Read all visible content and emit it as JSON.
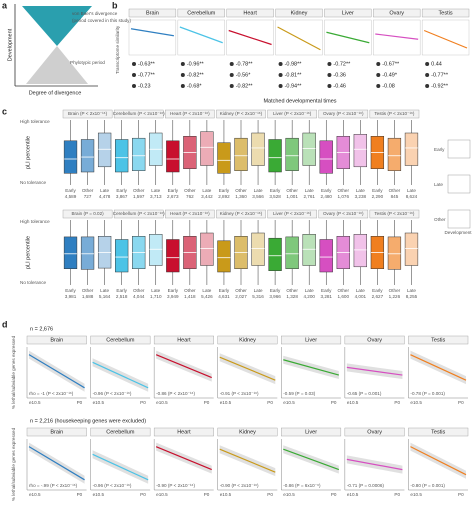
{
  "panels": {
    "a": {
      "label": "a",
      "y_axis": "Development",
      "x_axis": "Degree of divergence",
      "note_top": "von Baer's divergence",
      "note_sub": "(period covered in this study)",
      "note_bottom": "Phylotypic period"
    },
    "b": {
      "label": "b",
      "y_axis": "Transcriptome similarity",
      "x_axis": "Matched developmental times",
      "ylim": [
        0,
        1
      ],
      "tissues": [
        {
          "name": "Brain",
          "color": "#2f7fc1",
          "trend": [
            0.75,
            0.55
          ],
          "rho": [
            "-0.63**",
            "-0.77**",
            "-0.23"
          ]
        },
        {
          "name": "Cerebellum",
          "color": "#4cc3e6",
          "trend": [
            0.8,
            0.35
          ],
          "rho": [
            "-0.96**",
            "-0.82**",
            "-0.68*"
          ]
        },
        {
          "name": "Heart",
          "color": "#c8102e",
          "trend": [
            0.7,
            0.3
          ],
          "rho": [
            "-0.78**",
            "-0.56*",
            "-0.82**"
          ]
        },
        {
          "name": "Kidney",
          "color": "#c99a1a",
          "trend": [
            0.8,
            0.15
          ],
          "rho": [
            "-0.98**",
            "-0.81**",
            "-0.94**"
          ]
        },
        {
          "name": "Liver",
          "color": "#3aaa35",
          "trend": [
            0.65,
            0.35
          ],
          "rho": [
            "-0.72**",
            "-0.36",
            "-0.46"
          ]
        },
        {
          "name": "Ovary",
          "color": "#d64fc1",
          "trend": [
            0.6,
            0.45
          ],
          "rho": [
            "-0.67**",
            "-0.49*",
            "-0.08"
          ]
        },
        {
          "name": "Testis",
          "color": "#f07f1f",
          "trend": [
            0.7,
            0.2
          ],
          "rho": [
            "0.44",
            "-0.77**",
            "-0.92**"
          ]
        }
      ]
    },
    "c": {
      "label": "c",
      "y_axis": "pLI percentile",
      "high": "High tolerance",
      "low": "No tolerance",
      "ylim": [
        0,
        100
      ],
      "groups": [
        "Early",
        "Other",
        "Late"
      ],
      "legend": {
        "early": "Early",
        "late": "Late",
        "other": "Other",
        "x_axis": "Development"
      },
      "rows": [
        {
          "panels": [
            {
              "title": "Brain (P < 2x10⁻¹⁶)",
              "counts": [
                "4,589",
                "727",
                "4,478"
              ],
              "boxes": [
                [
                  0,
                  18,
                  40,
                  68,
                  100
                ],
                [
                  0,
                  20,
                  43,
                  70,
                  100
                ],
                [
                  0,
                  28,
                  55,
                  80,
                  100
                ]
              ]
            },
            {
              "title": "Cerebellum (P < 2x10⁻¹⁶)",
              "counts": [
                "3,867",
                "1,597",
                "3,713"
              ],
              "boxes": [
                [
                  0,
                  20,
                  42,
                  70,
                  100
                ],
                [
                  0,
                  22,
                  45,
                  72,
                  100
                ],
                [
                  0,
                  30,
                  55,
                  80,
                  100
                ]
              ]
            },
            {
              "title": "Heart (P < 2x10⁻¹⁶)",
              "counts": [
                "2,673",
                "762",
                "3,442"
              ],
              "boxes": [
                [
                  0,
                  20,
                  40,
                  68,
                  100
                ],
                [
                  0,
                  25,
                  50,
                  75,
                  100
                ],
                [
                  0,
                  30,
                  58,
                  82,
                  100
                ]
              ]
            },
            {
              "title": "Kidney (P < 2x10⁻¹⁶)",
              "counts": [
                "2,892",
                "1,360",
                "3,566"
              ],
              "boxes": [
                [
                  0,
                  18,
                  38,
                  65,
                  100
                ],
                [
                  0,
                  22,
                  45,
                  72,
                  100
                ],
                [
                  0,
                  30,
                  57,
                  80,
                  100
                ]
              ]
            },
            {
              "title": "Liver (P < 2x10⁻¹⁶)",
              "counts": [
                "3,528",
                "1,001",
                "2,761"
              ],
              "boxes": [
                [
                  0,
                  20,
                  42,
                  70,
                  100
                ],
                [
                  0,
                  22,
                  45,
                  72,
                  100
                ],
                [
                  0,
                  30,
                  56,
                  80,
                  100
                ]
              ]
            },
            {
              "title": "Ovary (P < 2x10⁻¹⁶)",
              "counts": [
                "2,480",
                "1,076",
                "3,238"
              ],
              "boxes": [
                [
                  0,
                  18,
                  40,
                  68,
                  100
                ],
                [
                  0,
                  25,
                  50,
                  75,
                  100
                ],
                [
                  0,
                  28,
                  55,
                  78,
                  100
                ]
              ]
            },
            {
              "title": "Testis (P < 2x10⁻¹⁶)",
              "counts": [
                "2,290",
                "845",
                "8,624"
              ],
              "boxes": [
                [
                  0,
                  25,
                  50,
                  75,
                  100
                ],
                [
                  0,
                  22,
                  45,
                  72,
                  100
                ],
                [
                  0,
                  30,
                  57,
                  80,
                  100
                ]
              ]
            }
          ]
        },
        {
          "panels": [
            {
              "title": "Brain (P = 0.02)",
              "counts": [
                "3,981",
                "1,688",
                "5,164"
              ],
              "boxes": [
                [
                  0,
                  25,
                  48,
                  74,
                  100
                ],
                [
                  0,
                  24,
                  48,
                  74,
                  100
                ],
                [
                  0,
                  26,
                  50,
                  75,
                  100
                ]
              ]
            },
            {
              "title": "Cerebellum (P < 2x10⁻¹⁶)",
              "counts": [
                "2,518",
                "4,044",
                "1,710"
              ],
              "boxes": [
                [
                  0,
                  20,
                  43,
                  70,
                  100
                ],
                [
                  0,
                  25,
                  50,
                  75,
                  100
                ],
                [
                  0,
                  30,
                  55,
                  78,
                  100
                ]
              ]
            },
            {
              "title": "Heart (P < 2x10⁻¹⁶)",
              "counts": [
                "3,949",
                "1,418",
                "5,426"
              ],
              "boxes": [
                [
                  0,
                  20,
                  42,
                  70,
                  100
                ],
                [
                  0,
                  25,
                  50,
                  75,
                  100
                ],
                [
                  0,
                  30,
                  56,
                  80,
                  100
                ]
              ]
            },
            {
              "title": "Kidney (P < 2x10⁻¹⁶)",
              "counts": [
                "4,631",
                "2,027",
                "5,316"
              ],
              "boxes": [
                [
                  0,
                  20,
                  42,
                  68,
                  100
                ],
                [
                  0,
                  25,
                  50,
                  75,
                  100
                ],
                [
                  0,
                  30,
                  56,
                  80,
                  100
                ]
              ]
            },
            {
              "title": "Liver (P < 2x10⁻¹⁶)",
              "counts": [
                "3,966",
                "1,328",
                "4,200"
              ],
              "boxes": [
                [
                  0,
                  22,
                  45,
                  72,
                  100
                ],
                [
                  0,
                  25,
                  48,
                  74,
                  100
                ],
                [
                  0,
                  30,
                  55,
                  78,
                  100
                ]
              ]
            },
            {
              "title": "Ovary (P < 2x10⁻¹⁶)",
              "counts": [
                "3,281",
                "1,600",
                "4,001"
              ],
              "boxes": [
                [
                  0,
                  20,
                  43,
                  70,
                  100
                ],
                [
                  0,
                  25,
                  50,
                  75,
                  100
                ],
                [
                  0,
                  28,
                  54,
                  78,
                  100
                ]
              ]
            },
            {
              "title": "Testis (P < 2x10⁻¹⁶)",
              "counts": [
                "2,627",
                "1,226",
                "8,255"
              ],
              "boxes": [
                [
                  0,
                  25,
                  50,
                  75,
                  100
                ],
                [
                  0,
                  24,
                  48,
                  74,
                  100
                ],
                [
                  0,
                  30,
                  56,
                  80,
                  100
                ]
              ]
            }
          ]
        }
      ]
    },
    "d": {
      "label": "d",
      "y_axis": "% lethal/subviable genes expressed",
      "x_start": "e10.5",
      "x_end": "P0",
      "ylim": [
        0,
        1
      ],
      "rows": [
        {
          "n": "n = 2,676",
          "panels": [
            {
              "title": "Brain",
              "rho": "rho = -1 (P < 2x10⁻¹⁶)",
              "trend": [
                0.85,
                0.2
              ]
            },
            {
              "title": "Cerebellum",
              "rho": "-0.96 (P < 2x10⁻¹⁶)",
              "trend": [
                0.7,
                0.2
              ]
            },
            {
              "title": "Heart",
              "rho": "-0.86 (P < 2x10⁻¹⁶)",
              "trend": [
                0.85,
                0.4
              ]
            },
            {
              "title": "Kidney",
              "rho": "-0.91 (P < 2x10⁻¹⁶)",
              "trend": [
                0.8,
                0.35
              ]
            },
            {
              "title": "Liver",
              "rho": "-0.59 (P = 0.03)",
              "trend": [
                0.75,
                0.45
              ]
            },
            {
              "title": "Ovary",
              "rho": "-0.65 (P = 0.001)",
              "trend": [
                0.6,
                0.45
              ]
            },
            {
              "title": "Testis",
              "rho": "-0.78 (P = 0.001)",
              "trend": [
                0.85,
                0.35
              ]
            }
          ]
        },
        {
          "n": "n = 2,216 (housekeeping genes were excluded)",
          "panels": [
            {
              "title": "Brain",
              "rho": "rho = -.99 (P < 2x10⁻¹⁶)",
              "trend": [
                0.85,
                0.2
              ]
            },
            {
              "title": "Cerebellum",
              "rho": "-0.96 (P < 2x10⁻¹⁶)",
              "trend": [
                0.7,
                0.2
              ]
            },
            {
              "title": "Heart",
              "rho": "-0.90 (P < 2x10⁻¹⁶)",
              "trend": [
                0.85,
                0.4
              ]
            },
            {
              "title": "Kidney",
              "rho": "-0.90 (P < 2x10⁻¹⁶)",
              "trend": [
                0.8,
                0.35
              ]
            },
            {
              "title": "Liver",
              "rho": "-0.86 (P = 6x10⁻⁶)",
              "trend": [
                0.8,
                0.4
              ]
            },
            {
              "title": "Ovary",
              "rho": "-0.71 (P = 0.0006)",
              "trend": [
                0.6,
                0.4
              ]
            },
            {
              "title": "Testis",
              "rho": "-0.80 (P = 0.001)",
              "trend": [
                0.85,
                0.3
              ]
            }
          ]
        }
      ]
    }
  }
}
